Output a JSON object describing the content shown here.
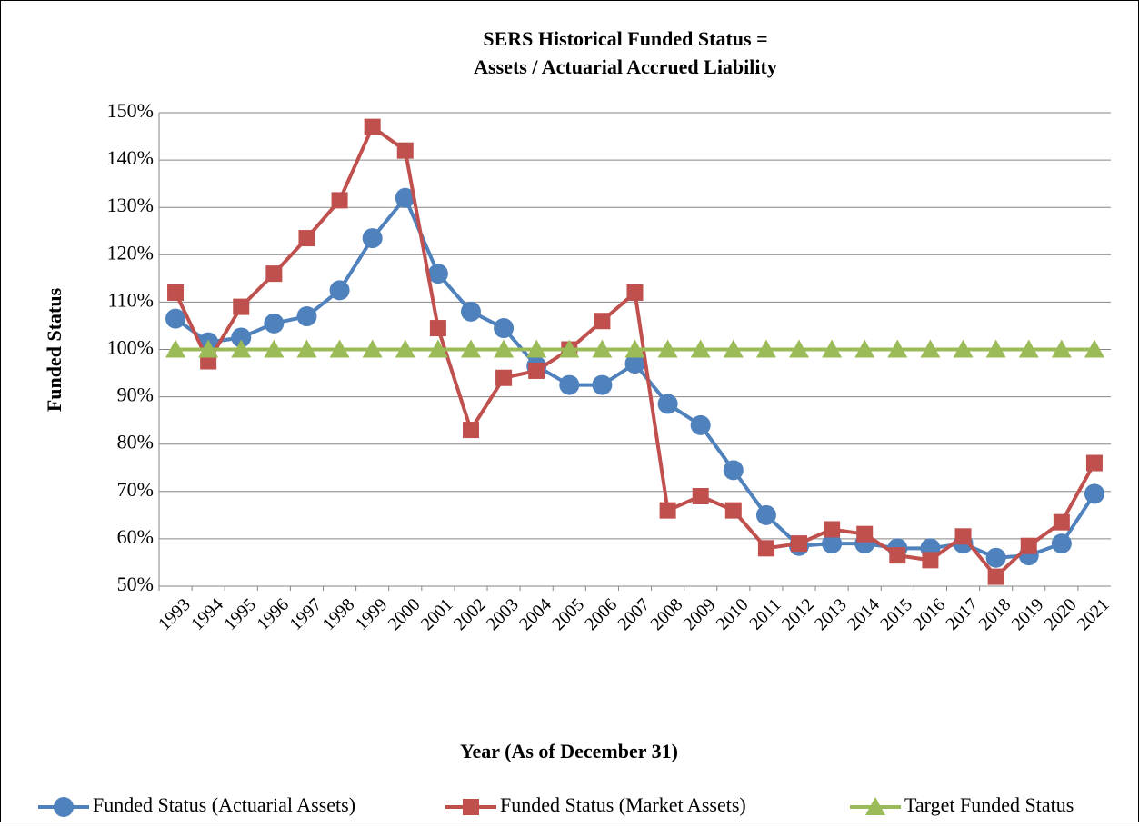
{
  "chart_data": {
    "type": "line",
    "title": [
      "SERS Historical Funded Status =",
      "Assets / Actuarial Accrued Liability"
    ],
    "y_label": "Funded Status",
    "x_label": "Year (As of December 31)",
    "categories": [
      "1993",
      "1994",
      "1995",
      "1996",
      "1997",
      "1998",
      "1999",
      "2000",
      "2001",
      "2002",
      "2003",
      "2004",
      "2005",
      "2006",
      "2007",
      "2008",
      "2009",
      "2010",
      "2011",
      "2012",
      "2013",
      "2014",
      "2015",
      "2016",
      "2017",
      "2018",
      "2019",
      "2020",
      "2021"
    ],
    "series": [
      {
        "name": "Funded Status (Actuarial Assets)",
        "color": "#4f81bd",
        "marker": "circle",
        "values": [
          106.5,
          101.5,
          102.5,
          105.5,
          107,
          112.5,
          123.5,
          132,
          116,
          108,
          104.5,
          96.5,
          92.5,
          92.5,
          97,
          88.5,
          84,
          74.5,
          65,
          58.5,
          59,
          59,
          58,
          58,
          59,
          56,
          56.5,
          59,
          69.5
        ]
      },
      {
        "name": "Funded Status (Market Assets)",
        "color": "#c0504d",
        "marker": "square",
        "values": [
          112,
          97.5,
          109,
          116,
          123.5,
          131.5,
          147,
          142,
          104.5,
          83,
          94,
          95.5,
          100,
          106,
          112,
          66,
          69,
          66,
          58,
          59,
          62,
          61,
          56.5,
          55.5,
          60.5,
          52,
          58.5,
          63.5,
          76
        ]
      },
      {
        "name": "Target Funded Status",
        "color": "#9bbb59",
        "marker": "triangle",
        "values": [
          100,
          100,
          100,
          100,
          100,
          100,
          100,
          100,
          100,
          100,
          100,
          100,
          100,
          100,
          100,
          100,
          100,
          100,
          100,
          100,
          100,
          100,
          100,
          100,
          100,
          100,
          100,
          100,
          100
        ]
      }
    ],
    "ylim": [
      50,
      150
    ],
    "yticks": [
      {
        "value": 50,
        "label": "50%"
      },
      {
        "value": 60,
        "label": "60%"
      },
      {
        "value": 70,
        "label": "70%"
      },
      {
        "value": 80,
        "label": "80%"
      },
      {
        "value": 90,
        "label": "90%"
      },
      {
        "value": 100,
        "label": "100%"
      },
      {
        "value": 110,
        "label": "110%"
      },
      {
        "value": 120,
        "label": "120%"
      },
      {
        "value": 130,
        "label": "130%"
      },
      {
        "value": 140,
        "label": "140%"
      },
      {
        "value": 150,
        "label": "150%"
      }
    ],
    "grid": true,
    "legend": "bottom"
  }
}
